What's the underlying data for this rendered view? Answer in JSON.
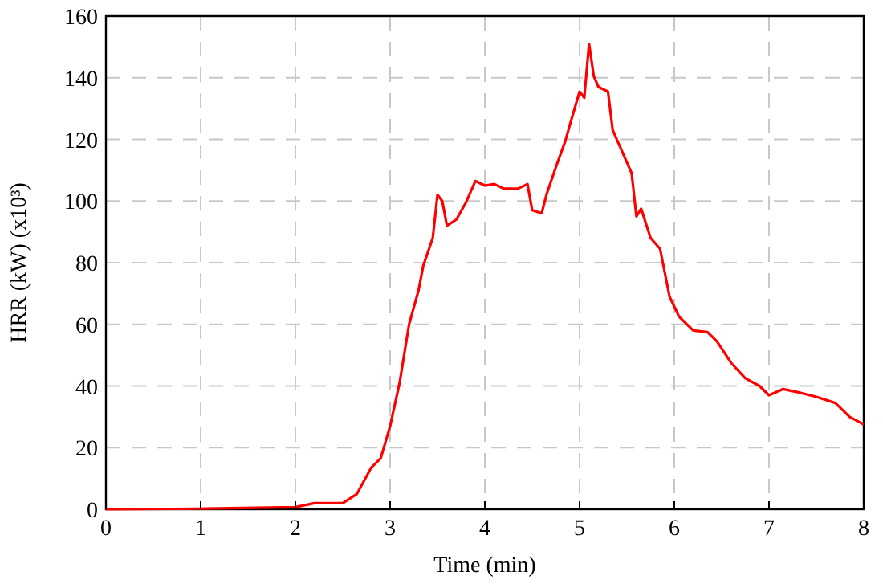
{
  "chart_data": {
    "type": "line",
    "xlabel": "Time (min)",
    "ylabel": "HRR (kW) (x10³)",
    "xlim": [
      0,
      8
    ],
    "ylim": [
      0,
      160
    ],
    "xticks": [
      0,
      1,
      2,
      3,
      4,
      5,
      6,
      7,
      8
    ],
    "yticks": [
      0,
      20,
      40,
      60,
      80,
      100,
      120,
      140,
      160
    ],
    "grid": true,
    "line_style": "solid",
    "series": [
      {
        "color": "#ff0000",
        "x": [
          0,
          1,
          2,
          2.2,
          2.5,
          2.65,
          2.8,
          2.9,
          3,
          3.1,
          3.2,
          3.3,
          3.35,
          3.45,
          3.5,
          3.55,
          3.6,
          3.7,
          3.8,
          3.9,
          4,
          4.1,
          4.2,
          4.35,
          4.45,
          4.5,
          4.6,
          4.65,
          4.75,
          4.85,
          4.9,
          5,
          5.05,
          5.1,
          5.15,
          5.2,
          5.3,
          5.35,
          5.45,
          5.55,
          5.6,
          5.65,
          5.75,
          5.85,
          5.95,
          6.05,
          6.2,
          6.35,
          6.45,
          6.6,
          6.75,
          6.9,
          7,
          7.15,
          7.3,
          7.5,
          7.7,
          7.85,
          8
        ],
        "values": [
          0,
          0.2,
          0.7,
          2,
          2,
          5,
          13.5,
          16.5,
          27,
          41,
          60,
          71,
          79,
          88,
          102,
          100,
          92,
          94,
          99.5,
          106.5,
          105,
          105.5,
          104,
          104,
          105.5,
          97,
          96,
          102,
          111,
          119.5,
          125,
          135.5,
          133.5,
          151,
          140.5,
          137,
          135.5,
          123,
          116,
          109,
          95,
          97.5,
          88,
          84.5,
          69,
          62.5,
          58,
          57.5,
          54.5,
          47.5,
          42.5,
          40,
          37,
          39,
          38,
          36.5,
          34.5,
          30,
          27.5
        ]
      }
    ]
  }
}
